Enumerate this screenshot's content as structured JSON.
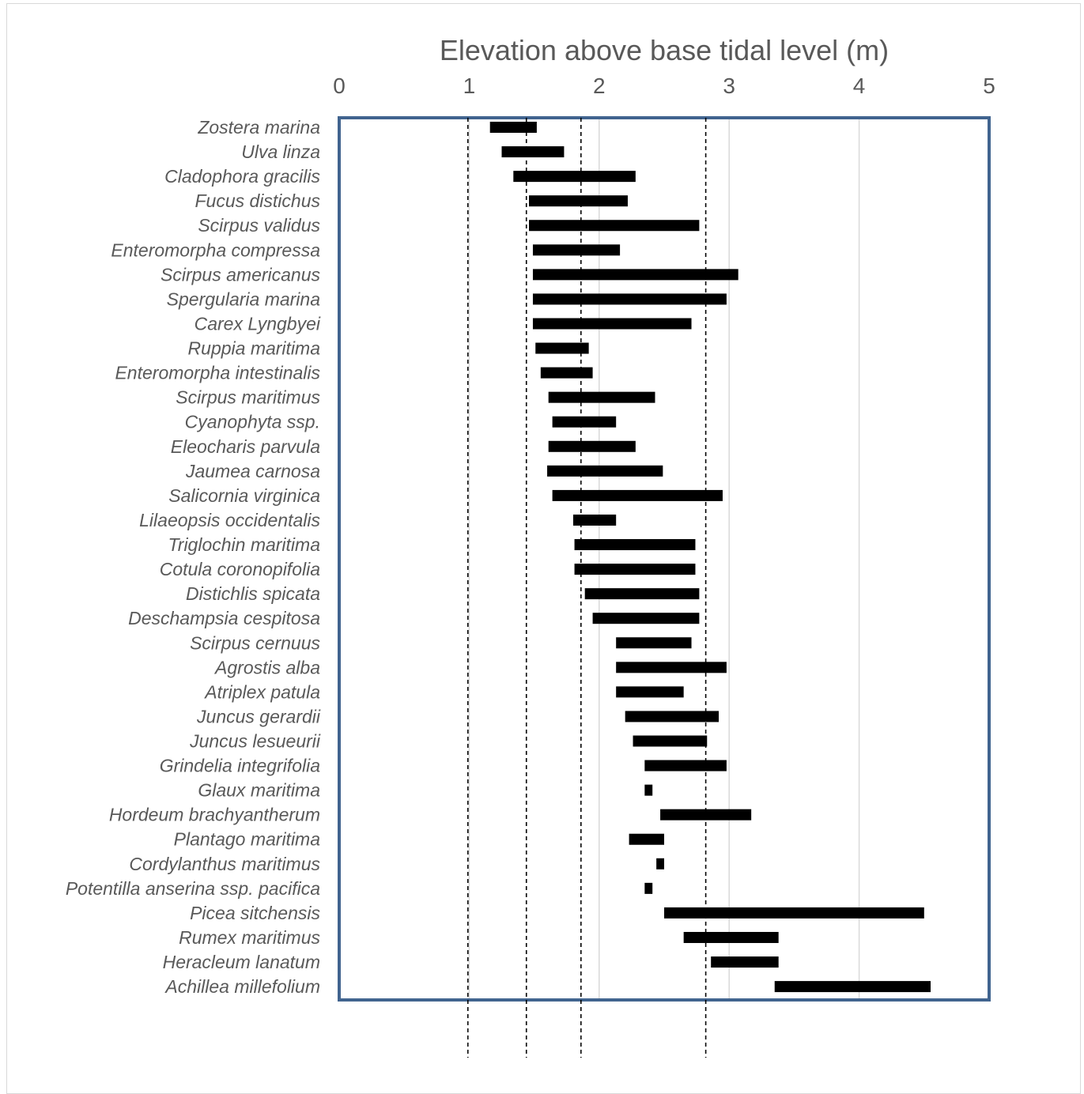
{
  "chart_data": {
    "type": "bar",
    "subtype": "floating-range-horizontal",
    "title": "",
    "xlabel": "Elevation above base tidal level (m)",
    "ylabel": "",
    "xlim": [
      0,
      5
    ],
    "xticks": [
      "0",
      "1",
      "2",
      "3",
      "4",
      "5"
    ],
    "x_axis_position": "top",
    "grid": true,
    "reference_lines": [
      0.99,
      1.44,
      1.86,
      2.82
    ],
    "reference_line_style": "dashed",
    "colors": {
      "bar": "#000000",
      "plot_border": "#41648f",
      "grid": "#d9d9d9",
      "text": "#595959"
    },
    "categories": [
      "Zostera marina",
      "Ulva linza",
      "Cladophora gracilis",
      "Fucus distichus",
      "Scirpus validus",
      "Enteromorpha compressa",
      "Scirpus americanus",
      "Spergularia marina",
      "Carex Lyngbyei",
      "Ruppia maritima",
      "Enteromorpha intestinalis",
      "Scirpus maritimus",
      "Cyanophyta ssp.",
      "Eleocharis parvula",
      "Jaumea carnosa",
      "Salicornia virginica",
      "Lilaeopsis occidentalis",
      "Triglochin maritima",
      "Cotula coronopifolia",
      "Distichlis spicata",
      "Deschampsia cespitosa",
      "Scirpus cernuus",
      "Agrostis alba",
      "Atriplex patula",
      "Juncus gerardii",
      "Juncus lesueurii",
      "Grindelia integrifolia",
      "Glaux maritima",
      "Hordeum brachyantherum",
      "Plantago maritima",
      "Cordylanthus maritimus",
      "Potentilla anserina ssp. pacifica",
      "Picea sitchensis",
      "Rumex maritimus",
      "Heracleum lanatum",
      "Achillea millefolium"
    ],
    "ranges": [
      [
        1.16,
        1.52
      ],
      [
        1.25,
        1.73
      ],
      [
        1.34,
        2.28
      ],
      [
        1.46,
        2.22
      ],
      [
        1.46,
        2.77
      ],
      [
        1.49,
        2.16
      ],
      [
        1.49,
        3.07
      ],
      [
        1.49,
        2.98
      ],
      [
        1.49,
        2.71
      ],
      [
        1.51,
        1.92
      ],
      [
        1.55,
        1.95
      ],
      [
        1.61,
        2.43
      ],
      [
        1.64,
        2.13
      ],
      [
        1.61,
        2.28
      ],
      [
        1.6,
        2.49
      ],
      [
        1.64,
        2.95
      ],
      [
        1.8,
        2.13
      ],
      [
        1.81,
        2.74
      ],
      [
        1.81,
        2.74
      ],
      [
        1.89,
        2.77
      ],
      [
        1.95,
        2.77
      ],
      [
        2.13,
        2.71
      ],
      [
        2.13,
        2.98
      ],
      [
        2.13,
        2.65
      ],
      [
        2.2,
        2.92
      ],
      [
        2.26,
        2.83
      ],
      [
        2.35,
        2.98
      ],
      [
        2.35,
        2.41
      ],
      [
        2.47,
        3.17
      ],
      [
        2.23,
        2.5
      ],
      [
        2.44,
        2.5
      ],
      [
        2.35,
        2.41
      ],
      [
        2.5,
        4.5
      ],
      [
        2.65,
        3.38
      ],
      [
        2.86,
        3.38
      ],
      [
        3.35,
        4.55
      ]
    ]
  }
}
